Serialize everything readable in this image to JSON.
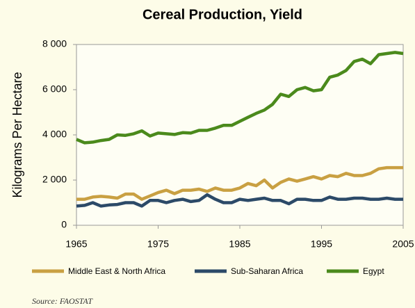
{
  "chart_data": {
    "type": "line",
    "title": "Cereal Production, Yield",
    "y_label": "Kilograms Per Hectare",
    "source": "Source: FAOSTAT",
    "x": [
      1965,
      1966,
      1967,
      1968,
      1969,
      1970,
      1971,
      1972,
      1973,
      1974,
      1975,
      1976,
      1977,
      1978,
      1979,
      1980,
      1981,
      1982,
      1983,
      1984,
      1985,
      1986,
      1987,
      1988,
      1989,
      1990,
      1991,
      1992,
      1993,
      1994,
      1995,
      1996,
      1997,
      1998,
      1999,
      2000,
      2001,
      2002,
      2003,
      2004,
      2005
    ],
    "xlim": [
      1965,
      2005
    ],
    "xticks": [
      1965,
      1975,
      1985,
      1995,
      2005
    ],
    "ylim": [
      0,
      8000
    ],
    "yticks": [
      0,
      {
        "value": 2000,
        "label": "2 000"
      },
      {
        "value": 4000,
        "label": "4 000"
      },
      {
        "value": 6000,
        "label": "6 000"
      },
      {
        "value": 8000,
        "label": "8 000"
      }
    ],
    "series": [
      {
        "name": "Middle East & North Africa",
        "color": "#c9a042",
        "values": [
          1150,
          1150,
          1250,
          1280,
          1250,
          1200,
          1380,
          1380,
          1150,
          1300,
          1450,
          1550,
          1400,
          1550,
          1550,
          1600,
          1500,
          1650,
          1550,
          1550,
          1650,
          1850,
          1750,
          2000,
          1650,
          1900,
          2050,
          1950,
          2050,
          2150,
          2050,
          2200,
          2150,
          2300,
          2200,
          2200,
          2300,
          2500,
          2550,
          2550,
          2550
        ]
      },
      {
        "name": "Sub-Saharan Africa",
        "color": "#2c4a68",
        "values": [
          850,
          880,
          1000,
          850,
          900,
          920,
          1000,
          1000,
          850,
          1100,
          1100,
          1000,
          1100,
          1150,
          1050,
          1100,
          1350,
          1150,
          1000,
          1000,
          1150,
          1100,
          1150,
          1200,
          1100,
          1100,
          950,
          1150,
          1150,
          1100,
          1100,
          1250,
          1150,
          1150,
          1200,
          1200,
          1150,
          1150,
          1200,
          1150,
          1150
        ]
      },
      {
        "name": "Egypt",
        "color": "#4b8a1c",
        "values": [
          3800,
          3650,
          3680,
          3750,
          3800,
          4000,
          3980,
          4050,
          4180,
          3950,
          4080,
          4050,
          4020,
          4100,
          4080,
          4200,
          4200,
          4300,
          4420,
          4420,
          4600,
          4780,
          4950,
          5100,
          5350,
          5800,
          5700,
          6000,
          6100,
          5950,
          6000,
          6550,
          6650,
          6850,
          7250,
          7350,
          7150,
          7550,
          7600,
          7650,
          7600
        ]
      }
    ]
  }
}
